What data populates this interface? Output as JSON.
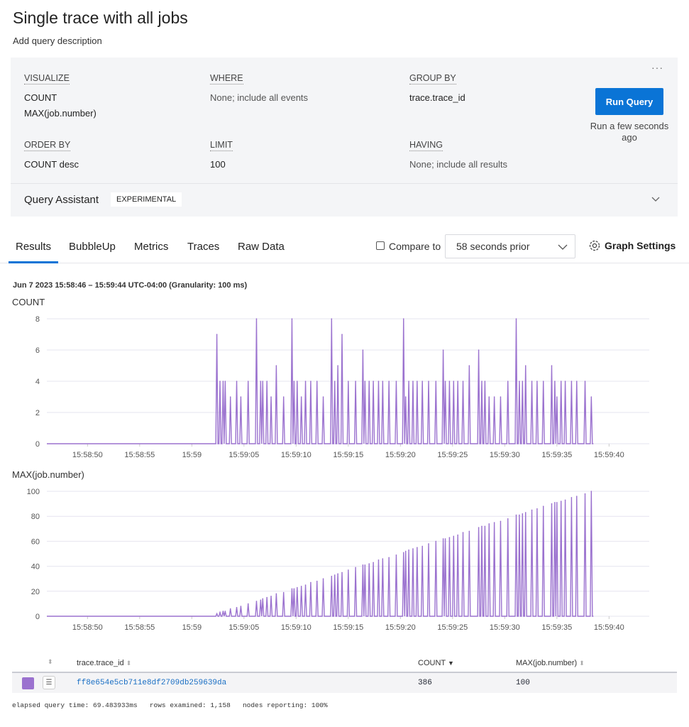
{
  "title": "Single trace with all jobs",
  "description": "Add query description",
  "query": {
    "visualize": {
      "label": "VISUALIZE",
      "values": [
        "COUNT",
        "MAX(job.number)"
      ]
    },
    "where": {
      "label": "WHERE",
      "value": "None; include all events"
    },
    "group_by": {
      "label": "GROUP BY",
      "value": "trace.trace_id"
    },
    "order_by": {
      "label": "ORDER BY",
      "value": "COUNT desc"
    },
    "limit": {
      "label": "LIMIT",
      "value": "100"
    },
    "having": {
      "label": "HAVING",
      "value": "None; include all results"
    },
    "run_label": "Run Query",
    "run_status": "Run a few seconds ago",
    "more": "···"
  },
  "assistant": {
    "label": "Query Assistant",
    "badge": "EXPERIMENTAL"
  },
  "tabs": [
    "Results",
    "BubbleUp",
    "Metrics",
    "Traces",
    "Raw Data"
  ],
  "compare": {
    "label": "Compare to",
    "checked": false,
    "selected": "58 seconds prior"
  },
  "graph_settings": "Graph Settings",
  "range": "Jun 7 2023 15:58:46 – 15:59:44 UTC-04:00 (Granularity: 100 ms)",
  "colors": {
    "series": "#9b72cf",
    "accent": "#0a74d6",
    "link": "#1a6fc4"
  },
  "chart_data": {
    "type": "line",
    "x_ticks": [
      "15:58:50",
      "15:58:55",
      "15:59",
      "15:59:05",
      "15:59:10",
      "15:59:15",
      "15:59:20",
      "15:59:25",
      "15:59:30",
      "15:59:35",
      "15:59:40"
    ],
    "charts": [
      {
        "title": "COUNT",
        "key": "count",
        "ylim": [
          0,
          8
        ],
        "y_ticks": [
          "0",
          "2",
          "4",
          "6",
          "8"
        ]
      },
      {
        "title": "MAX(job.number)",
        "key": "max",
        "ylim": [
          0,
          100
        ],
        "y_ticks": [
          "0",
          "20",
          "40",
          "60",
          "80",
          "100"
        ]
      }
    ],
    "baseline": 0,
    "points": [
      [
        "15:59:02.4",
        7,
        2
      ],
      [
        "15:59:02.7",
        4,
        3
      ],
      [
        "15:59:03.0",
        4,
        4
      ],
      [
        "15:59:03.2",
        4,
        4
      ],
      [
        "15:59:03.7",
        3,
        6
      ],
      [
        "15:59:04.3",
        4,
        7
      ],
      [
        "15:59:04.7",
        3,
        8
      ],
      [
        "15:59:05.4",
        4,
        10
      ],
      [
        "15:59:06.2",
        8,
        12
      ],
      [
        "15:59:06.6",
        4,
        13
      ],
      [
        "15:59:06.8",
        4,
        14
      ],
      [
        "15:59:07.2",
        4,
        15
      ],
      [
        "15:59:07.6",
        3,
        16
      ],
      [
        "15:59:08.1",
        5,
        18
      ],
      [
        "15:59:08.8",
        3,
        19
      ],
      [
        "15:59:09.6",
        8,
        22
      ],
      [
        "15:59:09.8",
        4,
        22
      ],
      [
        "15:59:10.1",
        4,
        23
      ],
      [
        "15:59:10.5",
        3,
        24
      ],
      [
        "15:59:10.9",
        4,
        25
      ],
      [
        "15:59:11.4",
        4,
        27
      ],
      [
        "15:59:12.0",
        4,
        28
      ],
      [
        "15:59:12.6",
        3,
        30
      ],
      [
        "15:59:13.4",
        8,
        32
      ],
      [
        "15:59:13.7",
        4,
        33
      ],
      [
        "15:59:14.0",
        5,
        34
      ],
      [
        "15:59:14.4",
        7,
        35
      ],
      [
        "15:59:15.0",
        4,
        37
      ],
      [
        "15:59:15.7",
        4,
        39
      ],
      [
        "15:59:16.4",
        6,
        41
      ],
      [
        "15:59:16.6",
        4,
        41
      ],
      [
        "15:59:17.0",
        4,
        42
      ],
      [
        "15:59:17.4",
        4,
        43
      ],
      [
        "15:59:17.9",
        4,
        45
      ],
      [
        "15:59:18.3",
        4,
        46
      ],
      [
        "15:59:18.9",
        4,
        47
      ],
      [
        "15:59:19.6",
        4,
        49
      ],
      [
        "15:59:20.3",
        8,
        51
      ],
      [
        "15:59:20.5",
        3,
        52
      ],
      [
        "15:59:20.8",
        4,
        53
      ],
      [
        "15:59:21.2",
        4,
        54
      ],
      [
        "15:59:21.6",
        4,
        55
      ],
      [
        "15:59:22.1",
        4,
        56
      ],
      [
        "15:59:22.7",
        4,
        58
      ],
      [
        "15:59:23.4",
        4,
        60
      ],
      [
        "15:59:24.1",
        6,
        62
      ],
      [
        "15:59:24.3",
        4,
        62
      ],
      [
        "15:59:24.7",
        4,
        63
      ],
      [
        "15:59:25.1",
        4,
        64
      ],
      [
        "15:59:25.5",
        4,
        65
      ],
      [
        "15:59:26.0",
        4,
        67
      ],
      [
        "15:59:26.6",
        5,
        68
      ],
      [
        "15:59:27.5",
        6,
        71
      ],
      [
        "15:59:27.8",
        4,
        72
      ],
      [
        "15:59:28.1",
        4,
        72
      ],
      [
        "15:59:28.5",
        3,
        74
      ],
      [
        "15:59:29.0",
        3,
        75
      ],
      [
        "15:59:29.6",
        3,
        76
      ],
      [
        "15:59:30.3",
        4,
        78
      ],
      [
        "15:59:31.1",
        8,
        81
      ],
      [
        "15:59:31.4",
        4,
        81
      ],
      [
        "15:59:31.7",
        4,
        82
      ],
      [
        "15:59:32.0",
        5,
        83
      ],
      [
        "15:59:32.6",
        4,
        85
      ],
      [
        "15:59:33.1",
        4,
        86
      ],
      [
        "15:59:33.7",
        4,
        88
      ],
      [
        "15:59:34.5",
        5,
        90
      ],
      [
        "15:59:34.8",
        4,
        91
      ],
      [
        "15:59:35.0",
        3,
        91
      ],
      [
        "15:59:35.4",
        4,
        92
      ],
      [
        "15:59:35.8",
        4,
        93
      ],
      [
        "15:59:36.4",
        4,
        95
      ],
      [
        "15:59:36.9",
        4,
        96
      ],
      [
        "15:59:37.7",
        4,
        98
      ],
      [
        "15:59:38.3",
        3,
        100
      ]
    ]
  },
  "table": {
    "headers": [
      "trace.trace_id",
      "COUNT",
      "MAX(job.number)"
    ],
    "rows": [
      {
        "trace_id": "ff8e654e5cb711e8df2709db259639da",
        "count": "386",
        "max": "100"
      }
    ]
  },
  "footer": "elapsed query time: 69.483933ms   rows examined: 1,158   nodes reporting: 100%"
}
